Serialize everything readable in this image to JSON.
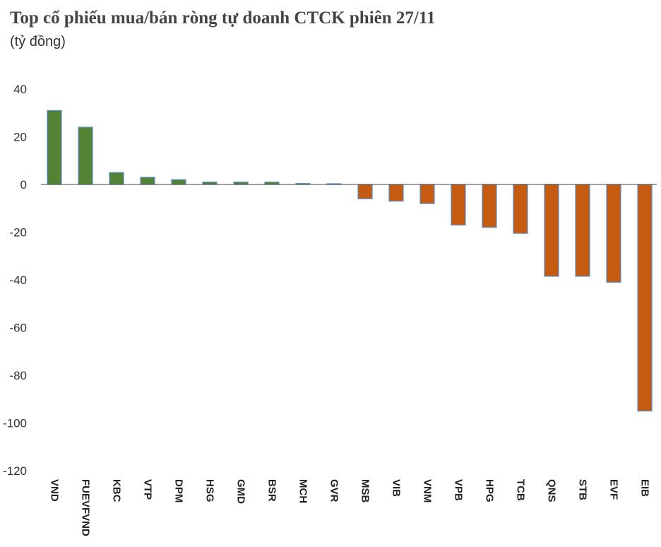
{
  "title": "Top cổ phiếu mua/bán ròng tự doanh CTCK phiên 27/11",
  "subtitle": "(tỷ đồng)",
  "colors": {
    "positive": "#548235",
    "negative": "#C55A11",
    "bar_outline": "#5B8DC8",
    "zero_line": "#444444"
  },
  "chart_data": {
    "type": "bar",
    "title": "Top cổ phiếu mua/bán ròng tự doanh CTCK phiên 27/11",
    "subtitle": "(tỷ đồng)",
    "xlabel": "",
    "ylabel": "",
    "ylim": [
      -120,
      40
    ],
    "yticks": [
      40,
      20,
      0,
      -20,
      -40,
      -60,
      -80,
      -100,
      -120
    ],
    "grid": false,
    "legend": "none",
    "categories": [
      "VND",
      "FUEVFVND",
      "KBC",
      "VTP",
      "DPM",
      "HSG",
      "GMD",
      "BSR",
      "MCH",
      "GVR",
      "MSB",
      "VIB",
      "VNM",
      "VPB",
      "HPG",
      "TCB",
      "QNS",
      "STB",
      "EVF",
      "EIB"
    ],
    "values": [
      31,
      24,
      5,
      3,
      2,
      1,
      1,
      1,
      0.4,
      0.3,
      -6,
      -7,
      -8,
      -17,
      -18,
      -20.5,
      -38.5,
      -38.5,
      -41,
      -95
    ]
  }
}
